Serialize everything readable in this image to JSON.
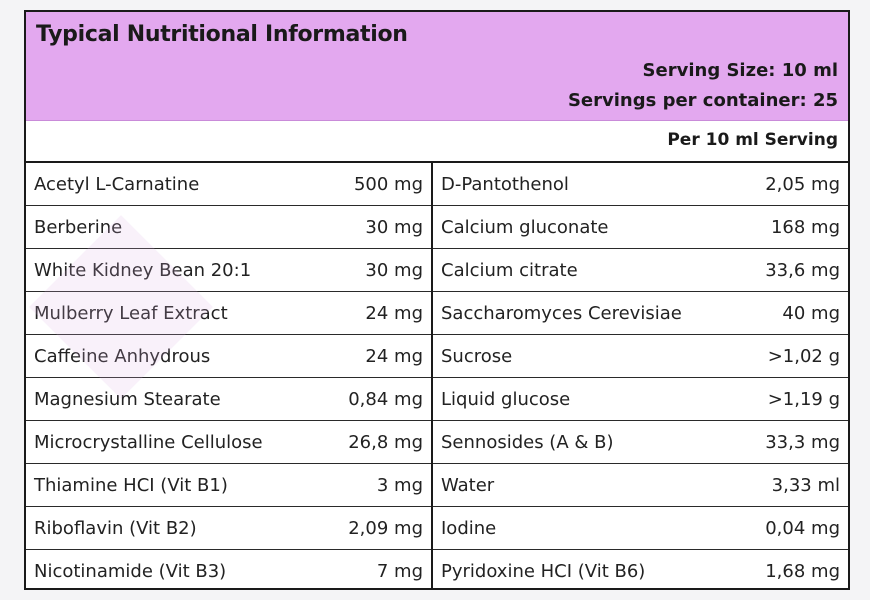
{
  "header": {
    "title": "Typical Nutritional Information",
    "serving_size": "Serving Size: 10 ml",
    "servings_per_container": "Servings per container: 25",
    "per_serving": "Per 10 ml Serving"
  },
  "colors": {
    "header_bg": "#e3a8ef",
    "border": "#1a1a1a"
  },
  "rows": [
    {
      "left_name": "Acetyl L-Carnatine",
      "left_amount": "500 mg",
      "right_name": "D-Pantothenol",
      "right_amount": "2,05 mg"
    },
    {
      "left_name": "Berberine",
      "left_amount": "30 mg",
      "right_name": "Calcium gluconate",
      "right_amount": "168 mg"
    },
    {
      "left_name": "White Kidney Bean 20:1",
      "left_amount": "30 mg",
      "right_name": "Calcium citrate",
      "right_amount": "33,6 mg"
    },
    {
      "left_name": "Mulberry Leaf Extract",
      "left_amount": "24 mg",
      "right_name": "Saccharomyces Cerevisiae",
      "right_amount": "40 mg"
    },
    {
      "left_name": "Caffeine Anhydrous",
      "left_amount": "24 mg",
      "right_name": "Sucrose",
      "right_amount": ">1,02 g"
    },
    {
      "left_name": "Magnesium Stearate",
      "left_amount": "0,84 mg",
      "right_name": "Liquid glucose",
      "right_amount": ">1,19 g"
    },
    {
      "left_name": "Microcrystalline Cellulose",
      "left_amount": "26,8 mg",
      "right_name": "Sennosides (A & B)",
      "right_amount": "33,3 mg"
    },
    {
      "left_name": "Thiamine HCI (Vit B1)",
      "left_amount": "3 mg",
      "right_name": "Water",
      "right_amount": "3,33 ml"
    },
    {
      "left_name": "Riboflavin (Vit B2)",
      "left_amount": "2,09 mg",
      "right_name": "Iodine",
      "right_amount": "0,04 mg"
    },
    {
      "left_name": "Nicotinamide (Vit B3)",
      "left_amount": "7 mg",
      "right_name": "Pyridoxine HCI (Vit B6)",
      "right_amount": "1,68 mg"
    }
  ]
}
